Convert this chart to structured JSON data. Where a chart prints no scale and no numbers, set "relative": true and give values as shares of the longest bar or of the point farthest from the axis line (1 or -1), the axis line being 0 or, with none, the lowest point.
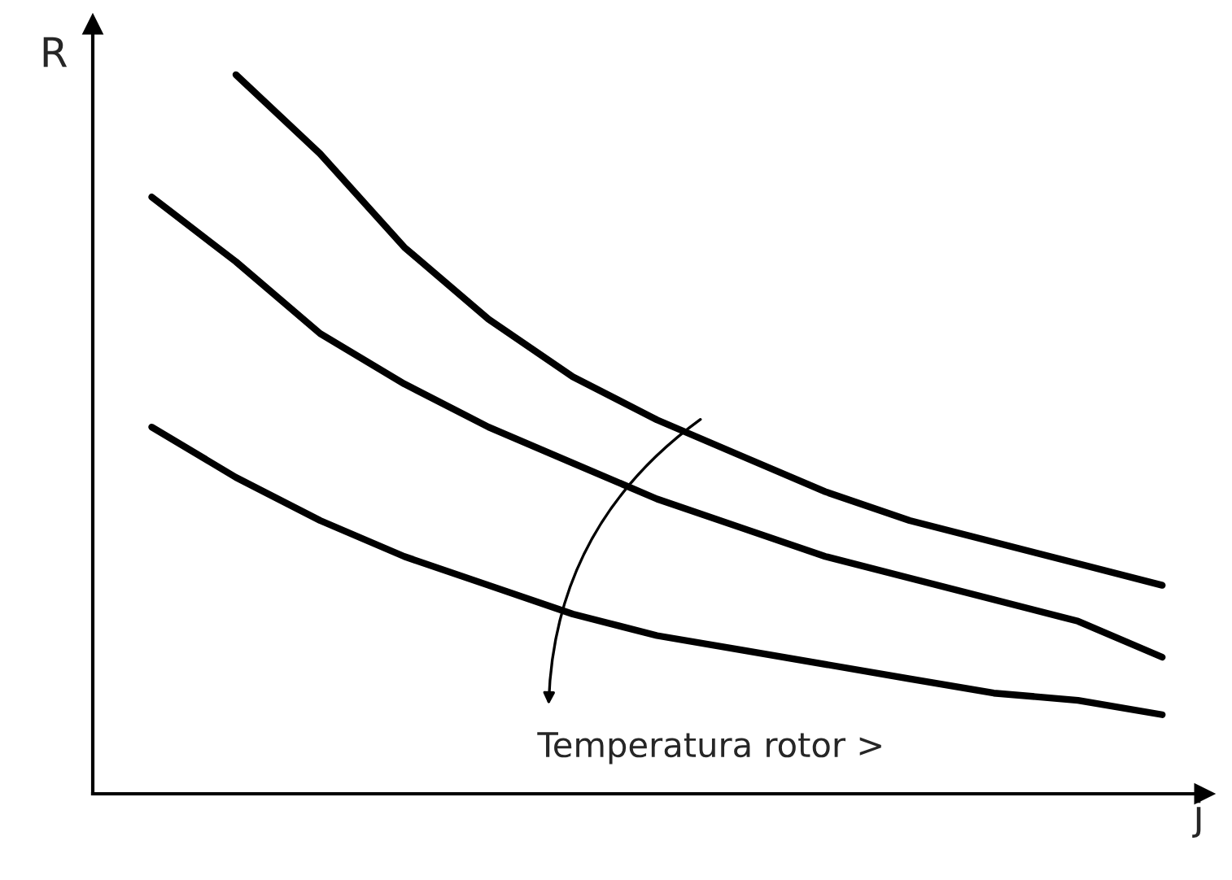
{
  "chart_data": {
    "type": "line",
    "relative": true,
    "xlabel": "j",
    "ylabel": "R",
    "categories": [
      null,
      null,
      null,
      null,
      null,
      null,
      null,
      null,
      null,
      null,
      null,
      null,
      null
    ],
    "series": [
      {
        "color": "#000000",
        "values": [
          null,
          1.0,
          0.89,
          0.76,
          0.66,
          0.58,
          0.52,
          0.47,
          0.42,
          0.38,
          0.35,
          0.32,
          0.29
        ]
      },
      {
        "color": "#000000",
        "values": [
          0.83,
          0.74,
          0.64,
          0.57,
          0.51,
          0.46,
          0.41,
          0.37,
          0.33,
          0.3,
          0.27,
          0.24,
          0.19
        ]
      },
      {
        "color": "#000000",
        "values": [
          0.51,
          0.44,
          0.38,
          0.33,
          0.29,
          0.25,
          0.22,
          0.2,
          0.18,
          0.16,
          0.14,
          0.13,
          0.11
        ]
      }
    ],
    "annotations": [
      "Temperatura rotor >"
    ],
    "grid": false,
    "legend": false,
    "tick_labels": false,
    "marker": "none",
    "line_style": "solid"
  }
}
